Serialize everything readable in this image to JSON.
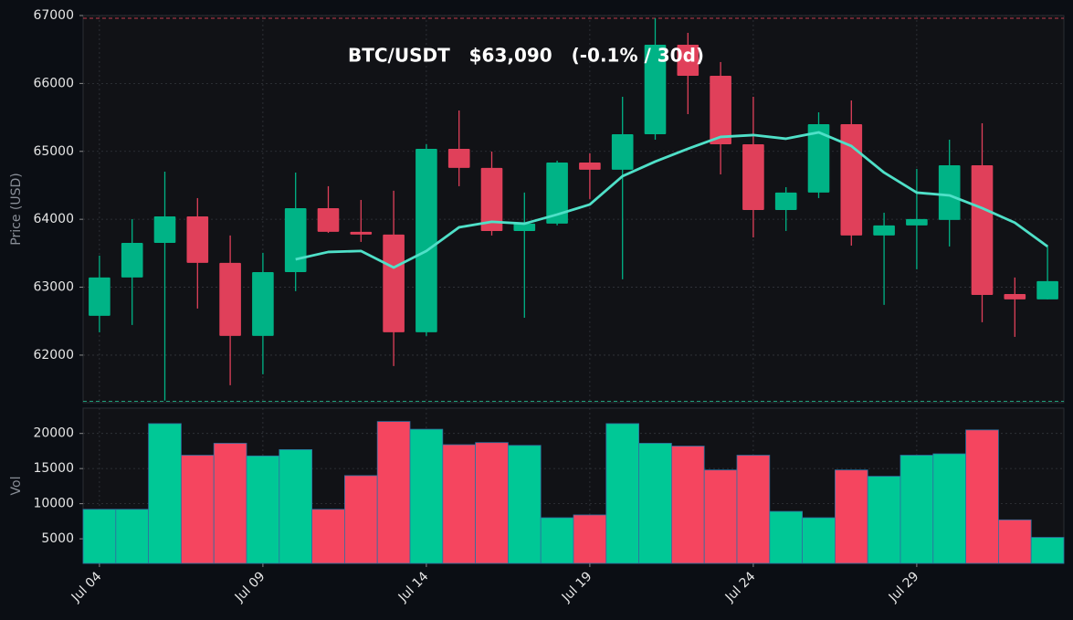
{
  "chart_data": {
    "type": "candlestick",
    "title": "BTC/USDT   $63,090   (-0.1% / 30d)",
    "y_label": "Price (USD)",
    "categories": [
      "Jul 04",
      null,
      null,
      null,
      null,
      "Jul 09",
      null,
      null,
      null,
      null,
      "Jul 14",
      null,
      null,
      null,
      null,
      "Jul 19",
      null,
      null,
      null,
      null,
      "Jul 24",
      null,
      null,
      null,
      null,
      "Jul 29",
      null,
      null,
      null,
      null
    ],
    "open": [
      62578,
      63143,
      63653,
      64043,
      63358,
      62283,
      63223,
      64164,
      63815,
      63775,
      62336,
      65038,
      64756,
      63828,
      63936,
      64836,
      64729,
      65253,
      66570,
      66113,
      65105,
      64137,
      64393,
      65401,
      63761,
      63910,
      63990,
      64796,
      62900,
      62820
    ],
    "high": [
      63465,
      64003,
      64702,
      64312,
      63761,
      63506,
      64688,
      64487,
      64285,
      64420,
      65105,
      65602,
      64997,
      64393,
      64863,
      64970,
      65804,
      66960,
      66745,
      66315,
      65804,
      64473,
      65575,
      65750,
      64097,
      64742,
      65172,
      65414,
      63143,
      63613
    ],
    "low": [
      62336,
      62444,
      61330,
      62686,
      61557,
      61718,
      62941,
      63800,
      63667,
      61839,
      62283,
      64487,
      63761,
      62551,
      63910,
      64299,
      63116,
      65172,
      65548,
      64661,
      63734,
      63828,
      64312,
      63613,
      62740,
      63264,
      63600,
      62484,
      62269,
      62820
    ],
    "close": [
      63143,
      63653,
      64043,
      63358,
      62283,
      63223,
      64164,
      63815,
      63775,
      62336,
      65038,
      64756,
      63828,
      63936,
      64836,
      64729,
      65253,
      66570,
      66113,
      65105,
      64137,
      64393,
      65401,
      63761,
      63910,
      64003,
      64796,
      62887,
      62820,
      63090
    ],
    "up_color": "#00b386",
    "down_color": "#e0405a",
    "ma": {
      "color": "#4fe0c8",
      "values": [
        null,
        null,
        null,
        null,
        null,
        null,
        63411,
        63519,
        63533,
        63290,
        63533,
        63882,
        63963,
        63936,
        64070,
        64218,
        64635,
        64850,
        65038,
        65213,
        65240,
        65186,
        65280,
        65078,
        64688,
        64393,
        64352,
        64164,
        63950,
        63600
      ]
    },
    "ylim": [
      61300,
      67000
    ],
    "yticks": [
      62000,
      63000,
      64000,
      65000,
      66000,
      67000
    ],
    "grid": true,
    "reference_lines": [
      {
        "value": 66960,
        "color": "#c0394f"
      },
      {
        "value": 61320,
        "color": "#1f9e7a"
      }
    ],
    "volume": {
      "y_label": "Vol",
      "values": [
        9200,
        9200,
        21400,
        16900,
        18600,
        16800,
        17700,
        9200,
        14000,
        21700,
        20600,
        18400,
        18700,
        18300,
        8000,
        8400,
        21400,
        18600,
        18200,
        14800,
        16900,
        8900,
        8000,
        14800,
        13900,
        16900,
        17100,
        20500,
        7700,
        5200
      ],
      "ylim": [
        1500,
        23600
      ],
      "yticks": [
        5000,
        10000,
        15000,
        20000
      ],
      "up_color": "#00c896",
      "down_color": "#f5455f"
    }
  }
}
